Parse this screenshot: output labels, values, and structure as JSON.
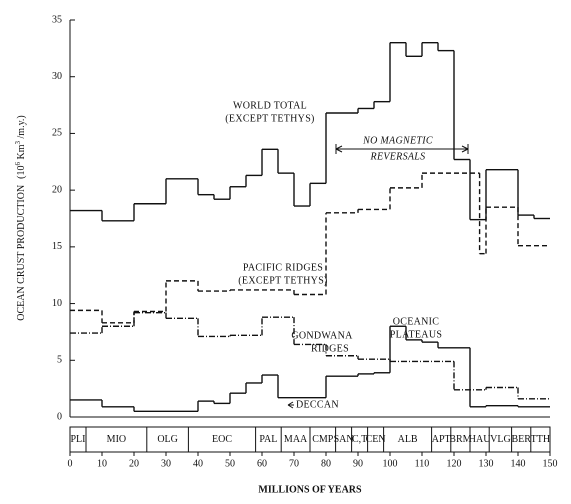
{
  "chart_data": {
    "type": "step",
    "ylabel": "OCEAN CRUST PRODUCTION",
    "yunit_parts": [
      "(10",
      "6",
      " Km",
      "3",
      " /m.y.)"
    ],
    "xlabel": "MILLIONS OF YEARS",
    "xlim": [
      0,
      150
    ],
    "xticks": [
      0,
      10,
      20,
      30,
      40,
      50,
      60,
      70,
      80,
      90,
      100,
      110,
      120,
      130,
      140,
      150
    ],
    "ylim": [
      0,
      35
    ],
    "yticks": [
      0,
      5,
      10,
      15,
      20,
      25,
      30,
      35
    ],
    "series": [
      {
        "color": "#111111",
        "dash": "solid",
        "bins": [
          0,
          10,
          20,
          30,
          40,
          45,
          50,
          55,
          60,
          65,
          70,
          75,
          80,
          90,
          95,
          100,
          105,
          110,
          115,
          120,
          125,
          130,
          140,
          145,
          150
        ],
        "values": [
          18.2,
          17.3,
          18.8,
          21,
          19.6,
          19.2,
          20.3,
          21.3,
          23.6,
          21.5,
          18.6,
          20.6,
          26.8,
          27.2,
          27.8,
          33,
          31.8,
          33,
          32.3,
          22.7,
          17.4,
          21.8,
          17.8,
          17.5
        ]
      },
      {
        "color": "#111111",
        "dash": "dashed",
        "bins": [
          0,
          10,
          20,
          30,
          40,
          50,
          60,
          70,
          80,
          90,
          100,
          110,
          128,
          130,
          140,
          150
        ],
        "values": [
          9.4,
          8.3,
          9.3,
          12,
          11.1,
          11.2,
          11.2,
          10.8,
          18,
          18.3,
          20.2,
          21.5,
          14.4,
          18.5,
          15.1
        ]
      },
      {
        "color": "#111111",
        "dash": "dashdot",
        "bins": [
          0,
          10,
          20,
          30,
          40,
          50,
          60,
          70,
          80,
          90,
          100,
          120,
          130,
          140,
          150
        ],
        "values": [
          7.4,
          8,
          9.2,
          8.7,
          7.1,
          7.2,
          8.8,
          6.4,
          5.4,
          5.1,
          4.9,
          2.4,
          2.6,
          1.6
        ]
      },
      {
        "color": "#111111",
        "dash": "solid",
        "bins": [
          0,
          10,
          20,
          40,
          45,
          50,
          55,
          60,
          65,
          80,
          90,
          95,
          100,
          105,
          110,
          115,
          125,
          130,
          140,
          150
        ],
        "values": [
          1.5,
          0.9,
          0.5,
          1.4,
          1.2,
          2.1,
          3,
          3.7,
          1.7,
          3.6,
          3.8,
          3.9,
          8,
          6.8,
          6.6,
          6.1,
          0.9,
          1,
          0.9
        ]
      }
    ],
    "annotations": [
      "WORLD TOTAL",
      "(EXCEPT TETHYS)",
      "NO MAGNETIC",
      "REVERSALS",
      "PACIFIC RIDGES",
      "(EXCEPT TETHYS)",
      "GONDWANA",
      "RIDGES",
      "OCEANIC",
      "PLATEAUS",
      "DECCAN"
    ],
    "stages": [
      "PLI",
      "MIO",
      "OLG",
      "EOC",
      "PAL",
      "MAA",
      "CMP",
      "SAN",
      "C,T",
      "CEN",
      "ALB",
      "APT",
      "BRM",
      "HAU",
      "VLG",
      "BER",
      "TTH"
    ],
    "stage_edges": [
      0,
      5,
      24,
      37,
      58,
      66,
      75,
      83,
      88,
      93,
      98,
      113,
      119,
      125,
      131,
      138,
      144,
      150
    ]
  }
}
